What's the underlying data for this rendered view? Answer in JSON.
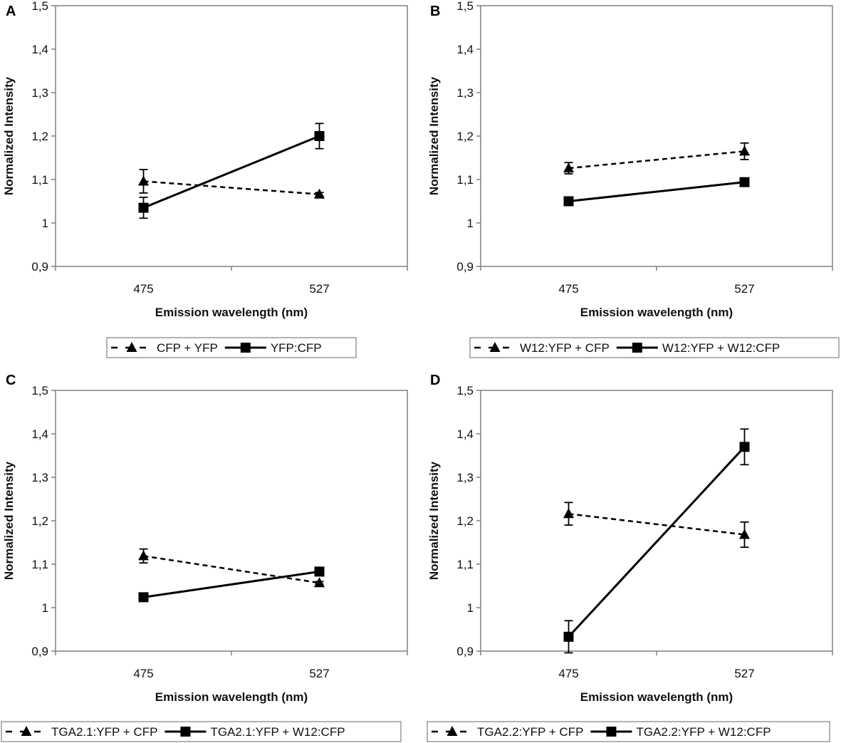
{
  "chart_data": [
    {
      "panel": "A",
      "type": "line",
      "categories": [
        "475",
        "527"
      ],
      "xlabel": "Emission wavelength (nm)",
      "ylabel": "Normalized Intensity",
      "ylim": [
        0.9,
        1.5
      ],
      "yticks": [
        "0,9",
        "1",
        "1,1",
        "1,2",
        "1,3",
        "1,4",
        "1,5"
      ],
      "series": [
        {
          "name": "CFP + YFP",
          "style": "dashed",
          "marker": "triangle",
          "values": [
            1.096,
            1.066
          ],
          "errors": [
            0.027,
            0.004
          ]
        },
        {
          "name": "YFP:CFP",
          "style": "solid",
          "marker": "square",
          "values": [
            1.035,
            1.2
          ],
          "errors": [
            0.024,
            0.029
          ]
        }
      ]
    },
    {
      "panel": "B",
      "type": "line",
      "categories": [
        "475",
        "527"
      ],
      "xlabel": "Emission wavelength (nm)",
      "ylabel": "Normalized Intensity",
      "ylim": [
        0.9,
        1.5
      ],
      "yticks": [
        "0,9",
        "1",
        "1,1",
        "1,2",
        "1,3",
        "1,4",
        "1,5"
      ],
      "series": [
        {
          "name": "W12:YFP + CFP",
          "style": "dashed",
          "marker": "triangle",
          "values": [
            1.126,
            1.165
          ],
          "errors": [
            0.013,
            0.019
          ]
        },
        {
          "name": "W12:YFP + W12:CFP",
          "style": "solid",
          "marker": "square",
          "values": [
            1.05,
            1.094
          ],
          "errors": [
            0.003,
            0.009
          ]
        }
      ]
    },
    {
      "panel": "C",
      "type": "line",
      "categories": [
        "475",
        "527"
      ],
      "xlabel": "Emission wavelength (nm)",
      "ylabel": "Normalized Intensity",
      "ylim": [
        0.9,
        1.5
      ],
      "yticks": [
        "0,9",
        "1",
        "1,1",
        "1,2",
        "1,3",
        "1,4",
        "1,5"
      ],
      "series": [
        {
          "name": "TGA2.1:YFP + CFP",
          "style": "dashed",
          "marker": "triangle",
          "values": [
            1.119,
            1.057
          ],
          "errors": [
            0.016,
            0.003
          ]
        },
        {
          "name": "TGA2.1:YFP + W12:CFP",
          "style": "solid",
          "marker": "square",
          "values": [
            1.024,
            1.083
          ],
          "errors": [
            0.003,
            0.003
          ]
        }
      ]
    },
    {
      "panel": "D",
      "type": "line",
      "categories": [
        "475",
        "527"
      ],
      "xlabel": "Emission wavelength (nm)",
      "ylabel": "Normalized Intensity",
      "ylim": [
        0.9,
        1.5
      ],
      "yticks": [
        "0,9",
        "1",
        "1,1",
        "1,2",
        "1,3",
        "1,4",
        "1,5"
      ],
      "series": [
        {
          "name": "TGA2.2:YFP + CFP",
          "style": "dashed",
          "marker": "triangle",
          "values": [
            1.216,
            1.168
          ],
          "errors": [
            0.026,
            0.029
          ]
        },
        {
          "name": "TGA2.2:YFP + W12:CFP",
          "style": "solid",
          "marker": "square",
          "values": [
            0.933,
            1.37
          ],
          "errors": [
            0.037,
            0.041
          ]
        }
      ]
    }
  ]
}
